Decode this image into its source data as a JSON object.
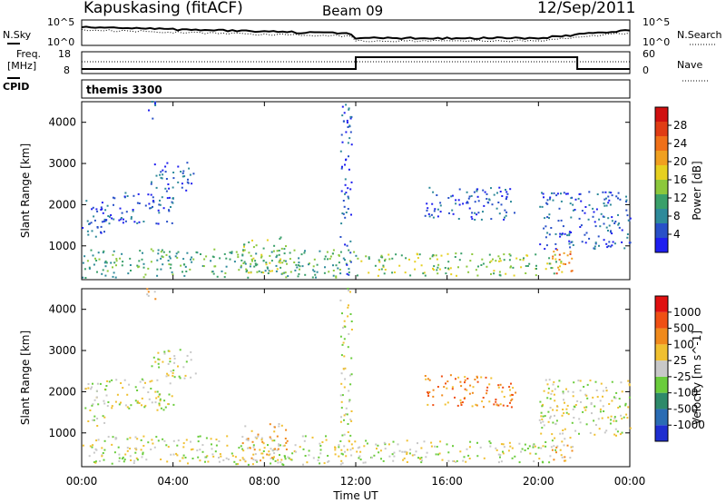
{
  "header": {
    "station": "Kapuskasing (fitACF)",
    "beam": "Beam 09",
    "date": "12/Sep/2011"
  },
  "status_panels": {
    "nsky_label": "N.Sky",
    "nsky_ticks": [
      "10^5",
      "10^0"
    ],
    "nsearch_label": "N.Search",
    "nsearch_ticks": [
      "10^5",
      "10^0"
    ],
    "freq_label_line1": "Freq.",
    "freq_label_line2": "[MHz]",
    "freq_ticks": [
      "18",
      "8"
    ],
    "nave_label": "Nave",
    "nave_ticks": [
      "60",
      "0"
    ],
    "cpid_label": "CPID",
    "cpid_value": "themis 3300"
  },
  "chart_data": [
    {
      "type": "heatmap",
      "panel": "power",
      "ylabel": "Slant Range [km]",
      "ylim": [
        180,
        4500
      ],
      "yticks": [
        "1000",
        "2000",
        "3000",
        "4000"
      ],
      "xlim_hours": [
        0,
        24
      ],
      "colorbar": {
        "label": "Power [dB]",
        "ticks": [
          "4",
          "8",
          "12",
          "16",
          "20",
          "24",
          "28"
        ],
        "colors": [
          "#1e1ef0",
          "#2850c8",
          "#2e8a9a",
          "#3aa06a",
          "#8cc83c",
          "#e6d020",
          "#f0a020",
          "#f07018",
          "#e03c14",
          "#d01010"
        ]
      },
      "regions": [
        {
          "t": [
            0.0,
            1.0
          ],
          "r": [
            1100,
            2200
          ],
          "level": 1
        },
        {
          "t": [
            3.0,
            5.0
          ],
          "r": [
            2300,
            3000
          ],
          "level": 1
        },
        {
          "t": [
            1.0,
            4.0
          ],
          "r": [
            1500,
            2300
          ],
          "level": 1
        },
        {
          "t": [
            0.0,
            12.0
          ],
          "r": [
            200,
            900
          ],
          "level": 3
        },
        {
          "t": [
            7.0,
            9.0
          ],
          "r": [
            300,
            1200
          ],
          "level": 4
        },
        {
          "t": [
            12.0,
            21.0
          ],
          "r": [
            250,
            800
          ],
          "level": 4
        },
        {
          "t": [
            15.0,
            19.0
          ],
          "r": [
            1600,
            2400
          ],
          "level": 1
        },
        {
          "t": [
            20.0,
            24.0
          ],
          "r": [
            900,
            2300
          ],
          "level": 1
        },
        {
          "t": [
            20.5,
            21.5
          ],
          "r": [
            250,
            900
          ],
          "level": 7
        },
        {
          "t": [
            11.3,
            11.8
          ],
          "r": [
            200,
            4500
          ],
          "level": 1
        },
        {
          "t": [
            2.8,
            3.2
          ],
          "r": [
            4000,
            4500
          ],
          "level": 1
        }
      ]
    },
    {
      "type": "heatmap",
      "panel": "velocity",
      "ylabel": "Slant Range [km]",
      "ylim": [
        180,
        4500
      ],
      "yticks": [
        "1000",
        "2000",
        "3000",
        "4000"
      ],
      "xlabel": "Time UT",
      "xticks": [
        "00:00",
        "04:00",
        "08:00",
        "12:00",
        "16:00",
        "20:00",
        "00:00"
      ],
      "colorbar": {
        "label": "Velocity [m s^-1]",
        "ticks": [
          "1000",
          "500",
          "100",
          "25",
          "-25",
          "-100",
          "-500",
          "-1000"
        ],
        "colors": [
          "#1e2ed0",
          "#2a6cb4",
          "#2e8a6a",
          "#6acc3c",
          "#c8c8c8",
          "#f0c030",
          "#f08a1c",
          "#f05014",
          "#e01010"
        ]
      },
      "regions": [
        {
          "t": [
            0.0,
            1.0
          ],
          "r": [
            1100,
            2200
          ],
          "level": 4
        },
        {
          "t": [
            3.0,
            5.0
          ],
          "r": [
            2300,
            3000
          ],
          "level": 4
        },
        {
          "t": [
            1.0,
            4.0
          ],
          "r": [
            1500,
            2300
          ],
          "level": 4
        },
        {
          "t": [
            0.0,
            12.0
          ],
          "r": [
            200,
            900
          ],
          "level": 4
        },
        {
          "t": [
            7.0,
            9.0
          ],
          "r": [
            300,
            1200
          ],
          "level": 5
        },
        {
          "t": [
            12.0,
            21.0
          ],
          "r": [
            250,
            800
          ],
          "level": 4
        },
        {
          "t": [
            15.0,
            19.0
          ],
          "r": [
            1600,
            2400
          ],
          "level": 6
        },
        {
          "t": [
            20.0,
            24.0
          ],
          "r": [
            900,
            2300
          ],
          "level": 4
        },
        {
          "t": [
            20.5,
            21.5
          ],
          "r": [
            250,
            900
          ],
          "level": 5
        },
        {
          "t": [
            11.3,
            11.8
          ],
          "r": [
            200,
            4500
          ],
          "level": 4
        },
        {
          "t": [
            2.8,
            3.2
          ],
          "r": [
            4000,
            4500
          ],
          "level": 5
        }
      ]
    }
  ],
  "colors": {
    "axes": "#000000",
    "background": "#ffffff"
  }
}
